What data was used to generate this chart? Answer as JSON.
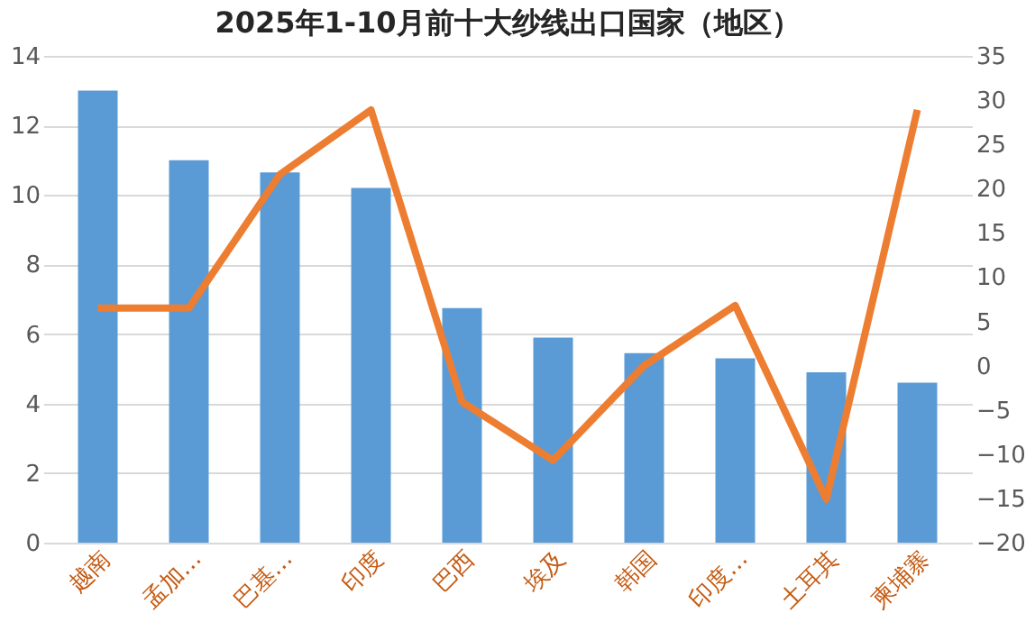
{
  "chart_data": {
    "type": "bar",
    "title": "2025年1-10月前十大纱线出口国家（地区）",
    "categories": [
      "越南",
      "孟加…",
      "巴基…",
      "印度",
      "巴西",
      "埃及",
      "韩国",
      "印度…",
      "土耳其",
      "柬埔寨"
    ],
    "series": [
      {
        "color": "#5b9bd5",
        "values": [
          13,
          11,
          10.65,
          10.2,
          6.75,
          5.9,
          5.45,
          5.3,
          4.9,
          4.6
        ]
      },
      {
        "type": "line",
        "axis": "y2",
        "color": "#ed7d31",
        "values": [
          6.5,
          6.5,
          21.6,
          28.9,
          -4.1,
          -10.7,
          0,
          6.8,
          -15.1,
          28.9
        ]
      }
    ],
    "ylim": [
      0,
      14
    ],
    "yticks": [
      0,
      2,
      4,
      6,
      8,
      10,
      12,
      14
    ],
    "y2lim": [
      -20,
      35
    ],
    "y2ticks": [
      -20,
      -15,
      -10,
      -5,
      0,
      5,
      10,
      15,
      20,
      25,
      30,
      35
    ],
    "grid": "y",
    "marker": "none",
    "line_style": "solid"
  }
}
